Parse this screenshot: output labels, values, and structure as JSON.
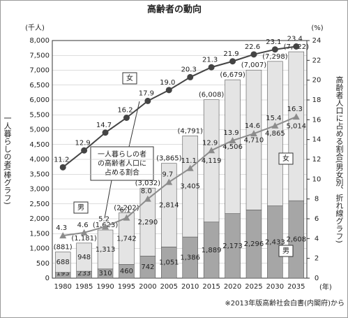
{
  "chart_data": {
    "type": "bar",
    "title": "高齢者の動向",
    "categories": [
      "1980",
      "1985",
      "1990",
      "1995",
      "2000",
      "2005",
      "2010",
      "2015",
      "2020",
      "2025",
      "2030",
      "2035"
    ],
    "xlabel": "(年)",
    "ylabel": "一人暮らしの者(棒グラフ)",
    "ylabel_unit": "(千人)",
    "y2label": "高齢者人口に占める割合(男女別、折れ線グラフ)",
    "y2label_unit": "(%)",
    "ylim": [
      0,
      8000
    ],
    "yticks": [
      0,
      {
        "value": 500,
        "label": "500"
      },
      {
        "value": 1000,
        "label": "1,000"
      },
      {
        "value": 1500,
        "label": "1,500"
      },
      {
        "value": 2000,
        "label": "2,000"
      },
      {
        "value": 2500,
        "label": "2,500"
      },
      {
        "value": 3000,
        "label": "3,000"
      },
      {
        "value": 3500,
        "label": "3,500"
      },
      {
        "value": 4000,
        "label": "4,000"
      },
      {
        "value": 4500,
        "label": "4,500"
      },
      {
        "value": 5000,
        "label": "5,000"
      },
      {
        "value": 5500,
        "label": "5,500"
      },
      {
        "value": 6000,
        "label": "6,000"
      },
      {
        "value": 6500,
        "label": "6,500"
      },
      {
        "value": 7000,
        "label": "7,000"
      },
      {
        "value": 7500,
        "label": "7,500"
      },
      {
        "value": 8000,
        "label": "8,000"
      }
    ],
    "y2lim": [
      0,
      24
    ],
    "y2ticks": [
      0,
      2,
      4,
      6,
      8,
      10,
      12,
      14,
      16,
      18,
      20,
      22,
      24
    ],
    "grid": true,
    "series": [
      {
        "name": "男",
        "type": "bar",
        "color": "#a6a6a6",
        "values": [
          193,
          233,
          310,
          460,
          742,
          1051,
          1386,
          1889,
          2173,
          2296,
          2433,
          2608
        ],
        "value_labels": [
          "193",
          "233",
          "310",
          "460",
          "742",
          "1,051",
          "1,386",
          "1,889",
          "2,173",
          "2,296",
          "2,433",
          "2,608"
        ]
      },
      {
        "name": "女",
        "type": "bar",
        "color": "#e4e4e4",
        "values": [
          688,
          948,
          1313,
          1742,
          2290,
          2814,
          3405,
          4119,
          4506,
          4710,
          4865,
          5014
        ],
        "value_labels": [
          "688",
          "948",
          "1,313",
          "1,742",
          "2,290",
          "2,814",
          "3,405",
          "4,119",
          "4,506",
          "4,710",
          "4,865",
          "5,014"
        ]
      },
      {
        "name": "女",
        "type": "line",
        "axis": "y2",
        "color": "#444444",
        "values": [
          11.2,
          12.9,
          14.7,
          16.2,
          17.9,
          19.0,
          20.3,
          21.3,
          21.9,
          22.6,
          23.1,
          23.4
        ],
        "value_labels": [
          "11.2",
          "12.9",
          "14.7",
          "16.2",
          "17.9",
          "19.0",
          "20.3",
          "21.3",
          "21.9",
          "22.6",
          "23.1",
          "23.4"
        ]
      },
      {
        "name": "男",
        "type": "line",
        "axis": "y2",
        "color": "#8c8c8c",
        "values": [
          4.3,
          4.6,
          5.2,
          6.1,
          8.0,
          9.7,
          11.1,
          12.9,
          13.9,
          14.6,
          15.4,
          16.3
        ],
        "value_labels": [
          "4.3",
          "4.6",
          "5.2",
          "6.1",
          "8.0",
          "9.7",
          "11.1",
          "12.9",
          "13.9",
          "14.6",
          "15.4",
          "16.3"
        ]
      }
    ],
    "total_labels": [
      "(881)",
      "(1,181)",
      "(1,623)",
      "(2,202)",
      "(3,032)",
      "(3,865)",
      "(4,791)",
      "(6,008)",
      "(6,679)",
      "(7,007)",
      "(7,298)",
      "(7,622)"
    ],
    "callout": [
      "一人暮らしの者",
      "の高齢者人口に",
      "占める割合"
    ],
    "source": "※2013年版高齢社会白書(内閣府)から"
  }
}
